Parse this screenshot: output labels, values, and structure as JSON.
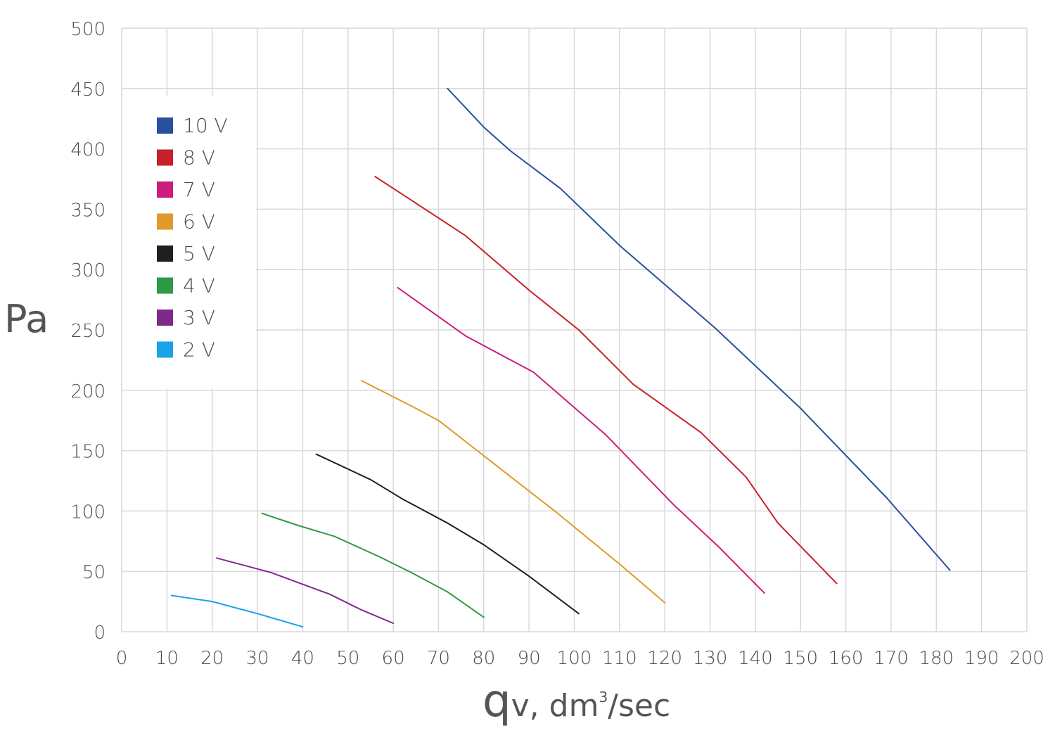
{
  "chart_data": {
    "type": "line",
    "ylabel": "Pa",
    "xlabel_main": "q",
    "xlabel_rest": "v, dm",
    "xlabel_sup": "3",
    "xlabel_end": "/sec",
    "xlim": [
      0,
      200
    ],
    "ylim": [
      0,
      500
    ],
    "xticks": [
      0,
      10,
      20,
      30,
      40,
      50,
      60,
      70,
      80,
      90,
      100,
      110,
      120,
      130,
      140,
      150,
      160,
      170,
      180,
      190,
      200
    ],
    "yticks": [
      0,
      50,
      100,
      150,
      200,
      250,
      300,
      350,
      400,
      450,
      500
    ],
    "grid": true,
    "legend_position": "top-left",
    "series": [
      {
        "name": "10 V",
        "color": "#2a4f9e",
        "x": [
          72,
          80,
          86,
          97,
          110,
          131,
          150,
          169,
          183
        ],
        "y": [
          450,
          418,
          398,
          367,
          320,
          252,
          185,
          111,
          51
        ]
      },
      {
        "name": "8 V",
        "color": "#c8202a",
        "x": [
          56,
          65,
          76,
          90,
          101,
          113,
          128,
          138,
          145,
          158
        ],
        "y": [
          377,
          355,
          328,
          283,
          250,
          205,
          165,
          128,
          90,
          40
        ]
      },
      {
        "name": "7 V",
        "color": "#cc1c7e",
        "x": [
          61,
          76,
          91,
          107,
          122,
          132,
          142
        ],
        "y": [
          285,
          245,
          215,
          163,
          105,
          70,
          32
        ]
      },
      {
        "name": "6 V",
        "color": "#e09a2b",
        "x": [
          53,
          65,
          70,
          83,
          96,
          110,
          120
        ],
        "y": [
          208,
          185,
          175,
          137,
          99,
          56,
          24
        ]
      },
      {
        "name": "5 V",
        "color": "#1f1f1f",
        "x": [
          43,
          55,
          62,
          72,
          80,
          90,
          101
        ],
        "y": [
          147,
          126,
          110,
          90,
          72,
          46,
          15
        ]
      },
      {
        "name": "4 V",
        "color": "#2e9a47",
        "x": [
          31,
          39,
          47,
          57,
          64,
          72,
          80
        ],
        "y": [
          98,
          88,
          79,
          62,
          49,
          33,
          12
        ]
      },
      {
        "name": "3 V",
        "color": "#7f2a8b",
        "x": [
          21,
          33,
          46,
          53,
          60
        ],
        "y": [
          61,
          49,
          31,
          18,
          7
        ]
      },
      {
        "name": "2 V",
        "color": "#1aa3e8",
        "x": [
          11,
          20,
          30,
          40
        ],
        "y": [
          30,
          25,
          15,
          4
        ]
      }
    ]
  }
}
